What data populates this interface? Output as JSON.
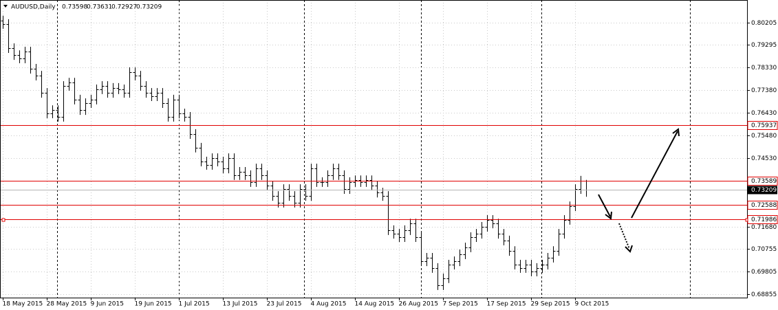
{
  "chart_data": {
    "type": "ohlc",
    "title": "AUDUSD,Daily",
    "categories": [
      "18 May 2015",
      null,
      null,
      null,
      null,
      null,
      null,
      null,
      "28 May 2015",
      null,
      null,
      null,
      null,
      null,
      null,
      null,
      "9 Jun 2015",
      null,
      null,
      null,
      null,
      null,
      null,
      null,
      "19 Jun 2015",
      null,
      null,
      null,
      null,
      null,
      null,
      null,
      "1 Jul 2015",
      null,
      null,
      null,
      null,
      null,
      null,
      null,
      "13 Jul 2015",
      null,
      null,
      null,
      null,
      null,
      null,
      null,
      "23 Jul 2015",
      null,
      null,
      null,
      null,
      null,
      null,
      null,
      "4 Aug 2015",
      null,
      null,
      null,
      null,
      null,
      null,
      null,
      "14 Aug 2015",
      null,
      null,
      null,
      null,
      null,
      null,
      null,
      "26 Aug 2015",
      null,
      null,
      null,
      null,
      null,
      null,
      null,
      "7 Sep 2015",
      null,
      null,
      null,
      null,
      null,
      null,
      null,
      "17 Sep 2015",
      null,
      null,
      null,
      null,
      null,
      null,
      null,
      "29 Sep 2015",
      null,
      null,
      null,
      null,
      null,
      null,
      null,
      "9 Oct 2015",
      null,
      null
    ],
    "open": [
      0.803,
      0.8015,
      0.7914,
      0.7885,
      0.7871,
      0.79,
      0.7828,
      0.7799,
      0.7727,
      0.7641,
      0.7655,
      0.7627,
      0.7756,
      0.777,
      0.7699,
      0.7655,
      0.7684,
      0.7699,
      0.7742,
      0.7756,
      0.7727,
      0.7748,
      0.7742,
      0.7727,
      0.7814,
      0.7799,
      0.7756,
      0.7727,
      0.7713,
      0.7727,
      0.7684,
      0.7627,
      0.7699,
      0.7641,
      0.7627,
      0.7555,
      0.7498,
      0.744,
      0.7426,
      0.7454,
      0.744,
      0.7411,
      0.7454,
      0.7383,
      0.7397,
      0.7383,
      0.7354,
      0.7411,
      0.7383,
      0.7339,
      0.7296,
      0.7268,
      0.7325,
      0.7296,
      0.7268,
      0.7325,
      0.7296,
      0.7411,
      0.7354,
      0.7354,
      0.7383,
      0.7411,
      0.7383,
      0.7325,
      0.7354,
      0.7362,
      0.7354,
      0.7362,
      0.7339,
      0.731,
      0.7296,
      0.7153,
      0.7138,
      0.7124,
      0.7153,
      0.7181,
      0.7124,
      0.7023,
      0.7038,
      0.6995,
      0.6923,
      0.6952,
      0.7009,
      0.7023,
      0.7052,
      0.7081,
      0.7124,
      0.7138,
      0.7167,
      0.7196,
      0.7181,
      0.7138,
      0.711,
      0.7066,
      0.7009,
      0.6995,
      0.7009,
      0.698,
      0.6995,
      0.7009,
      0.7038,
      0.7066,
      0.7138,
      0.7196,
      0.7253,
      0.7325,
      0.73598
    ],
    "high": [
      0.805,
      0.8035,
      0.7934,
      0.7905,
      0.792,
      0.792,
      0.7848,
      0.7819,
      0.7747,
      0.7675,
      0.7675,
      0.7776,
      0.779,
      0.779,
      0.7719,
      0.7704,
      0.7719,
      0.7762,
      0.7776,
      0.7776,
      0.7768,
      0.7768,
      0.7762,
      0.7834,
      0.7834,
      0.7819,
      0.7776,
      0.7747,
      0.7747,
      0.7747,
      0.7704,
      0.7719,
      0.7719,
      0.7661,
      0.7647,
      0.7575,
      0.7518,
      0.746,
      0.7474,
      0.7474,
      0.746,
      0.7474,
      0.7474,
      0.7417,
      0.7417,
      0.7403,
      0.7431,
      0.7431,
      0.7403,
      0.7359,
      0.7316,
      0.7345,
      0.7345,
      0.7316,
      0.7345,
      0.7345,
      0.7431,
      0.7431,
      0.7374,
      0.7403,
      0.7431,
      0.7431,
      0.7403,
      0.7374,
      0.7382,
      0.7382,
      0.7382,
      0.7382,
      0.7359,
      0.733,
      0.7316,
      0.7173,
      0.7158,
      0.7173,
      0.7201,
      0.7201,
      0.7144,
      0.7058,
      0.7058,
      0.7015,
      0.6972,
      0.7029,
      0.7043,
      0.7072,
      0.7101,
      0.7144,
      0.7158,
      0.7187,
      0.7216,
      0.7216,
      0.7201,
      0.7158,
      0.713,
      0.7086,
      0.7029,
      0.7029,
      0.7029,
      0.7015,
      0.7029,
      0.7058,
      0.7086,
      0.7158,
      0.7216,
      0.7273,
      0.7345,
      0.738,
      0.73631
    ],
    "low": [
      0.7995,
      0.7894,
      0.7865,
      0.7851,
      0.7851,
      0.7808,
      0.7779,
      0.7707,
      0.7621,
      0.7621,
      0.7607,
      0.7607,
      0.7736,
      0.7679,
      0.7635,
      0.7635,
      0.7664,
      0.7679,
      0.7722,
      0.7707,
      0.7707,
      0.7722,
      0.7707,
      0.7707,
      0.7779,
      0.7736,
      0.7707,
      0.7693,
      0.7693,
      0.7664,
      0.7607,
      0.7607,
      0.7621,
      0.7607,
      0.7535,
      0.7478,
      0.742,
      0.7406,
      0.7406,
      0.742,
      0.7391,
      0.7391,
      0.7363,
      0.7363,
      0.7363,
      0.7334,
      0.7334,
      0.7363,
      0.7319,
      0.7276,
      0.7248,
      0.7248,
      0.7276,
      0.7248,
      0.7248,
      0.7276,
      0.7276,
      0.7334,
      0.7334,
      0.7334,
      0.7363,
      0.7363,
      0.7305,
      0.7305,
      0.7334,
      0.7334,
      0.7334,
      0.7319,
      0.729,
      0.7276,
      0.7133,
      0.7118,
      0.7104,
      0.7104,
      0.7133,
      0.7104,
      0.7003,
      0.7003,
      0.6975,
      0.6903,
      0.6903,
      0.6932,
      0.6989,
      0.7003,
      0.7032,
      0.7061,
      0.7104,
      0.7118,
      0.7147,
      0.7161,
      0.7118,
      0.709,
      0.7046,
      0.6989,
      0.6975,
      0.6975,
      0.696,
      0.696,
      0.6975,
      0.6989,
      0.7018,
      0.7046,
      0.7118,
      0.7176,
      0.7233,
      0.7305,
      0.72927
    ],
    "close": [
      0.8015,
      0.7914,
      0.7885,
      0.7871,
      0.79,
      0.7828,
      0.7799,
      0.7727,
      0.7641,
      0.7655,
      0.7627,
      0.7756,
      0.777,
      0.7699,
      0.7655,
      0.7684,
      0.7699,
      0.7742,
      0.7756,
      0.7727,
      0.7748,
      0.7742,
      0.7727,
      0.7814,
      0.7799,
      0.7756,
      0.7727,
      0.7713,
      0.7727,
      0.7684,
      0.7627,
      0.7699,
      0.7641,
      0.7627,
      0.7555,
      0.7498,
      0.744,
      0.7426,
      0.7454,
      0.744,
      0.7411,
      0.7454,
      0.7383,
      0.7397,
      0.7383,
      0.7354,
      0.7411,
      0.7383,
      0.7339,
      0.7296,
      0.7268,
      0.7325,
      0.7296,
      0.7268,
      0.7325,
      0.7296,
      0.7411,
      0.7354,
      0.7354,
      0.7383,
      0.7411,
      0.7383,
      0.7325,
      0.7354,
      0.7362,
      0.7354,
      0.7362,
      0.7339,
      0.731,
      0.7296,
      0.7153,
      0.7138,
      0.7124,
      0.7153,
      0.7181,
      0.7124,
      0.7023,
      0.7038,
      0.6995,
      0.6923,
      0.6952,
      0.7009,
      0.7023,
      0.7052,
      0.7081,
      0.7124,
      0.7138,
      0.7167,
      0.7196,
      0.7181,
      0.7138,
      0.711,
      0.7066,
      0.7009,
      0.6995,
      0.7009,
      0.698,
      0.6995,
      0.7009,
      0.7038,
      0.7066,
      0.7138,
      0.7196,
      0.7253,
      0.7325,
      0.736,
      0.73209
    ],
    "color": "#000000",
    "ylim": [
      0.68711,
      0.81153
    ],
    "yticks": [
      0.80205,
      0.79295,
      {
        "value": 0.7833,
        "label": "0.78330"
      },
      {
        "value": 0.7738,
        "label": "0.77380"
      },
      {
        "value": 0.7643,
        "label": "0.76430"
      },
      {
        "value": 0.7548,
        "label": "0.75480"
      },
      {
        "value": 0.7453,
        "label": "0.74530"
      },
      {
        "value": 0.7168,
        "label": "0.71680"
      },
      0.70755,
      0.69805,
      0.68855
    ],
    "grid": true,
    "levels": [
      0.75937,
      0.73589,
      0.72588,
      0.71986
    ],
    "level_color": "#e00000"
  }
}
